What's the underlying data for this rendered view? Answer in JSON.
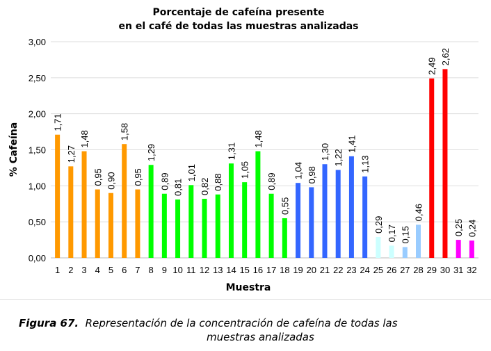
{
  "chart_data": {
    "type": "bar",
    "title_line1": "Porcentaje de cafeína presente",
    "title_line2": "en el café de todas las muestras analizadas",
    "xlabel": "Muestra",
    "ylabel": "% Cafeína",
    "ylim": [
      0,
      3
    ],
    "yticks": [
      "0,00",
      "0,50",
      "1,00",
      "1,50",
      "2,00",
      "2,50",
      "3,00"
    ],
    "grid": true,
    "categories": [
      "1",
      "2",
      "3",
      "4",
      "5",
      "6",
      "7",
      "8",
      "9",
      "10",
      "11",
      "12",
      "13",
      "14",
      "15",
      "16",
      "17",
      "18",
      "19",
      "20",
      "21",
      "22",
      "23",
      "24",
      "25",
      "26",
      "27",
      "28",
      "29",
      "30",
      "31",
      "32"
    ],
    "values": [
      1.71,
      1.27,
      1.48,
      0.95,
      0.9,
      1.58,
      0.95,
      1.29,
      0.89,
      0.81,
      1.01,
      0.82,
      0.88,
      1.31,
      1.05,
      1.48,
      0.89,
      0.55,
      1.04,
      0.98,
      1.3,
      1.22,
      1.41,
      1.13,
      0.29,
      0.17,
      0.15,
      0.46,
      2.49,
      2.62,
      0.25,
      0.24
    ],
    "labels": [
      "1,71",
      "1,27",
      "1,48",
      "0,95",
      "0,90",
      "1,58",
      "0,95",
      "1,29",
      "0,89",
      "0,81",
      "1,01",
      "0,82",
      "0,88",
      "1,31",
      "1,05",
      "1,48",
      "0,89",
      "0,55",
      "1,04",
      "0,98",
      "1,30",
      "1,22",
      "1,41",
      "1,13",
      "0,29",
      "0,17",
      "0,15",
      "0,46",
      "2,49",
      "2,62",
      "0,25",
      "0,24"
    ],
    "colors": [
      "#FF9900",
      "#FF9900",
      "#FF9900",
      "#FF9900",
      "#FF9900",
      "#FF9900",
      "#FF9900",
      "#00FF00",
      "#00FF00",
      "#00FF00",
      "#00FF00",
      "#00FF00",
      "#00FF00",
      "#00FF00",
      "#00FF00",
      "#00FF00",
      "#00FF00",
      "#00FF00",
      "#3366FF",
      "#3366FF",
      "#3366FF",
      "#3366FF",
      "#3366FF",
      "#3366FF",
      "#CCFFFF",
      "#CCFFFF",
      "#99CCFF",
      "#99CCFF",
      "#FF0000",
      "#FF0000",
      "#FF00FF",
      "#FF00FF"
    ]
  },
  "caption": {
    "label": "Figura 67.",
    "text_line1": "Representación de la concentración de cafeína de todas las",
    "text_line2": "muestras analizadas"
  }
}
